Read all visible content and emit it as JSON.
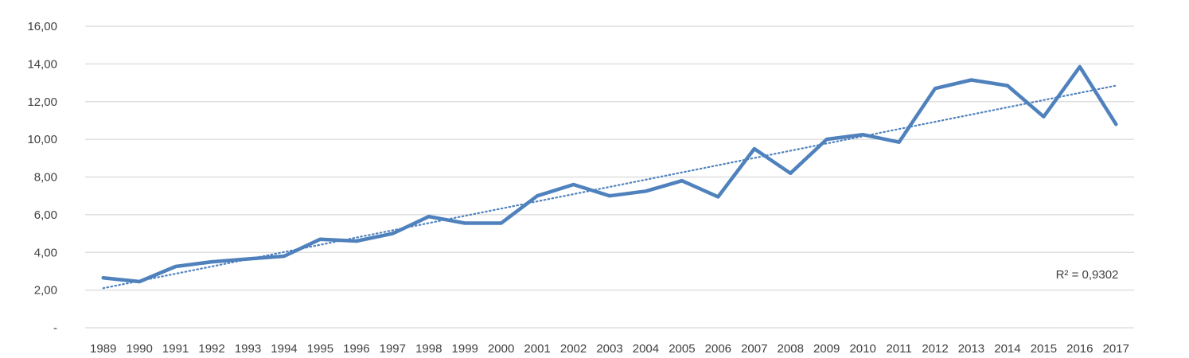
{
  "chart_data": {
    "type": "line",
    "title": "",
    "xlabel": "",
    "ylabel": "",
    "categories": [
      "1989",
      "1990",
      "1991",
      "1992",
      "1993",
      "1994",
      "1995",
      "1996",
      "1997",
      "1998",
      "1999",
      "2000",
      "2001",
      "2002",
      "2003",
      "2004",
      "2005",
      "2006",
      "2007",
      "2008",
      "2009",
      "2010",
      "2011",
      "2012",
      "2013",
      "2014",
      "2015",
      "2016",
      "2017"
    ],
    "series": [
      {
        "values": [
          2.65,
          2.45,
          3.25,
          3.5,
          3.65,
          3.8,
          4.7,
          4.6,
          5.0,
          5.9,
          5.55,
          5.55,
          7.0,
          7.6,
          7.0,
          7.25,
          7.8,
          6.95,
          9.5,
          8.2,
          10.0,
          10.25,
          9.85,
          12.7,
          13.15,
          12.85,
          11.2,
          13.85,
          10.8
        ],
        "color": "#4f81bd"
      }
    ],
    "trendline": {
      "type": "linear",
      "start": 2.1,
      "end": 12.85,
      "color": "#4f81bd",
      "style": "dotted",
      "r_squared_label": "R² = 0,9302"
    },
    "ylim": [
      0,
      16
    ],
    "yticks": [
      0,
      2,
      4,
      6,
      8,
      10,
      12,
      14,
      16
    ],
    "ytick_labels": [
      "-",
      "2,00",
      "4,00",
      "6,00",
      "8,00",
      "10,00",
      "12,00",
      "14,00",
      "16,00"
    ],
    "grid": true,
    "gridline_color": "#d9d9d9",
    "legend": "none"
  }
}
